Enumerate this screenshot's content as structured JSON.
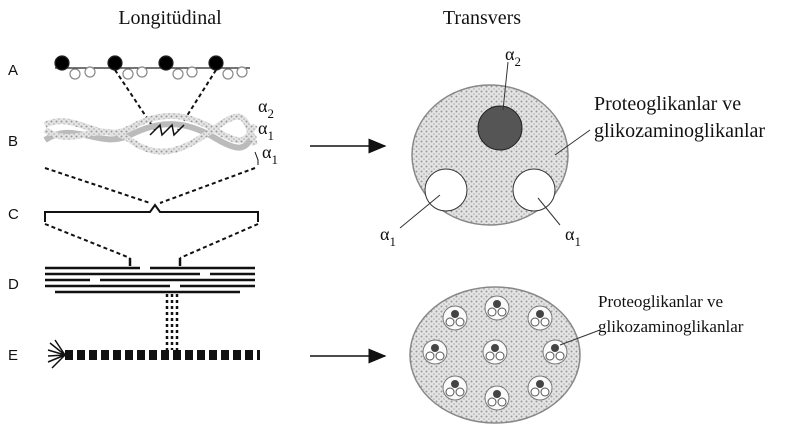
{
  "headers": {
    "longitudinal": "Longitüdinal",
    "transverse": "Transvers"
  },
  "rows": [
    "A",
    "B",
    "C",
    "D",
    "E"
  ],
  "helix_labels": [
    {
      "symbol": "α",
      "sub": "2"
    },
    {
      "symbol": "α",
      "sub": "1"
    },
    {
      "symbol": "α",
      "sub": "1"
    }
  ],
  "cross_section_top": {
    "chain_labels": [
      {
        "symbol": "α",
        "sub": "2"
      },
      {
        "symbol": "α",
        "sub": "1"
      },
      {
        "symbol": "α",
        "sub": "1"
      }
    ],
    "caption": [
      "Proteoglikanlar ve",
      "glikozaminoglikanlar"
    ]
  },
  "cross_section_bottom": {
    "caption": [
      "Proteoglikanlar ve",
      "glikozaminoglikanlar"
    ]
  }
}
